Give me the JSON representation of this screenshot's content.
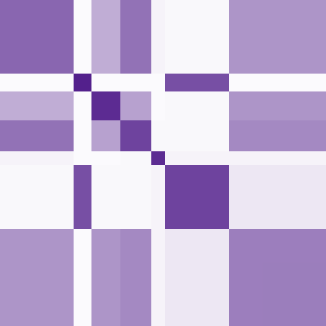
{
  "chart_data": {
    "type": "heatmap",
    "color": "#4a1486",
    "bins": [
      0,
      107,
      133,
      175,
      220,
      240,
      333,
      474
    ],
    "values": [
      [
        0.65,
        0.02,
        0.35,
        0.6,
        0.05,
        0.03,
        0.45
      ],
      [
        0.02,
        0.95,
        0.02,
        0.02,
        0.02,
        0.75,
        0.02
      ],
      [
        0.35,
        0.02,
        0.9,
        0.4,
        0.02,
        0.03,
        0.45
      ],
      [
        0.6,
        0.02,
        0.4,
        0.8,
        0.03,
        0.03,
        0.5
      ],
      [
        0.05,
        0.02,
        0.02,
        0.03,
        0.9,
        0.05,
        0.05
      ],
      [
        0.03,
        0.75,
        0.03,
        0.03,
        0.05,
        0.8,
        0.1
      ],
      [
        0.45,
        0.02,
        0.45,
        0.5,
        0.05,
        0.1,
        0.55
      ]
    ]
  }
}
